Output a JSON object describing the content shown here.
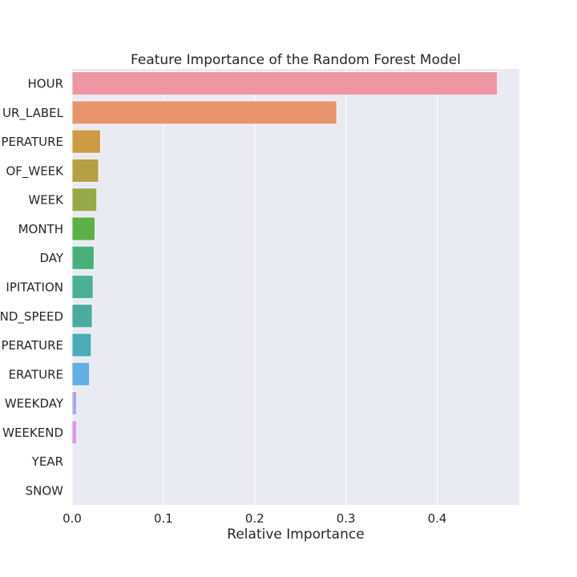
{
  "chart_data": {
    "type": "bar",
    "orientation": "horizontal",
    "title": "Feature Importance of the Random Forest Model",
    "xlabel": "Relative Importance",
    "ylabel": "",
    "xlim": [
      0,
      0.49
    ],
    "xticks": [
      0.0,
      0.1,
      0.2,
      0.3,
      0.4
    ],
    "xtick_labels": [
      "0.0",
      "0.1",
      "0.2",
      "0.3",
      "0.4"
    ],
    "grid": true,
    "categories": [
      "HOUR",
      "HOUR_LABEL",
      "TEMPERATURE",
      "DAY_OF_WEEK",
      "WEEK",
      "MONTH",
      "DAY",
      "PRECIPITATION",
      "WIND_SPEED",
      "FEELS_LIKE_TEMPERATURE",
      "DEW_POINT_TEMPERATURE",
      "IS_WEEKDAY",
      "IS_WEEKEND",
      "YEAR",
      "SNOW"
    ],
    "category_labels": [
      "HOUR",
      "UR_LABEL",
      "PERATURE",
      "OF_WEEK",
      "WEEK",
      "MONTH",
      "DAY",
      "IPITATION",
      "ND_SPEED",
      "PERATURE",
      "ERATURE",
      "WEEKDAY",
      "WEEKEND",
      "YEAR",
      "SNOW"
    ],
    "values": [
      0.466,
      0.29,
      0.031,
      0.029,
      0.027,
      0.025,
      0.024,
      0.023,
      0.022,
      0.021,
      0.019,
      0.005,
      0.005,
      0.0,
      0.0
    ],
    "colors": [
      "#ee96a4",
      "#e8956e",
      "#cd9b45",
      "#b6a046",
      "#98a949",
      "#5bb146",
      "#4ab07b",
      "#4bb195",
      "#4aac9f",
      "#4bacb9",
      "#63aee2",
      "#aba8ea",
      "#d898e8",
      "#f28cc1",
      "#f38cb2"
    ],
    "background_color": "#eaeaf2",
    "grid_color": "#ffffff"
  }
}
